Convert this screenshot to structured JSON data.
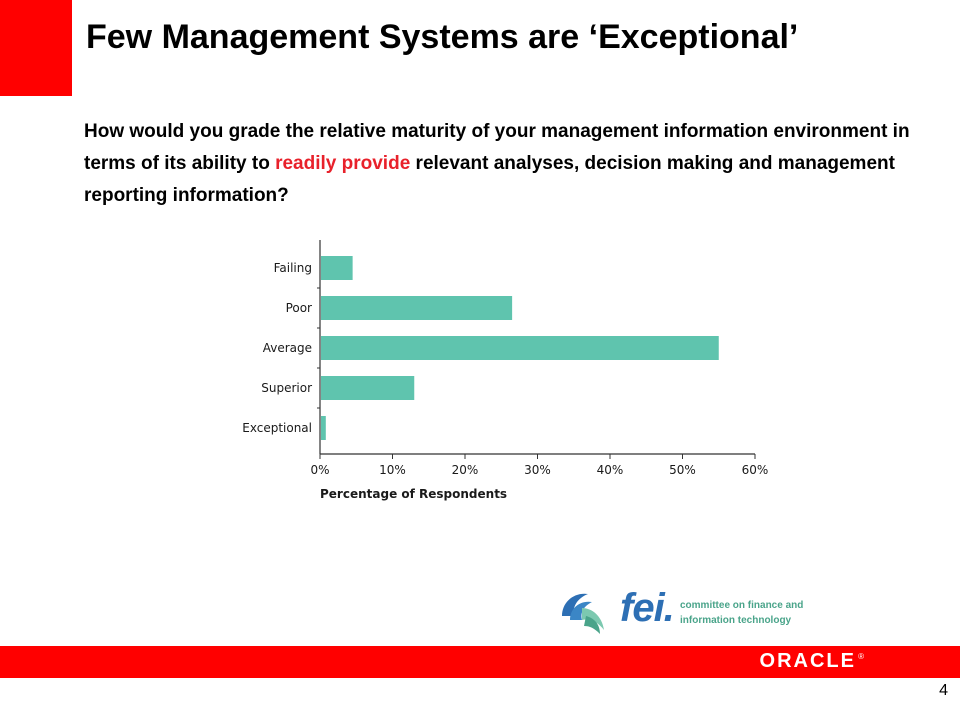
{
  "slide": {
    "title": "Few Management Systems are ‘Exceptional’",
    "question_part1": "How would you grade the relative maturity of your management information environment in terms of its ability to ",
    "question_highlight": "readily provide",
    "question_part2": " relevant analyses, decision making and management reporting information?",
    "page_number": "4"
  },
  "logo": {
    "fei_text": "fei.",
    "fei_caption": "committee on finance and\ninformation technology",
    "oracle_text": "ORACLE",
    "oracle_mark": "®"
  },
  "colors": {
    "accent_red": "#ff0000",
    "highlight_red": "#e8212b",
    "bar_color": "#5fc4ae",
    "fei_blue": "#2d6fb4",
    "fei_green": "#4aa48a"
  },
  "chart_data": {
    "type": "bar",
    "orientation": "horizontal",
    "categories": [
      "Failing",
      "Poor",
      "Average",
      "Superior",
      "Exceptional"
    ],
    "values": [
      4.5,
      26.5,
      55,
      13,
      0.8
    ],
    "xlabel": "Percentage of Respondents",
    "ylabel": "",
    "xlim": [
      0,
      60
    ],
    "xticks": [
      "0%",
      "10%",
      "20%",
      "30%",
      "40%",
      "50%",
      "60%"
    ],
    "grid": false,
    "legend": "none"
  }
}
